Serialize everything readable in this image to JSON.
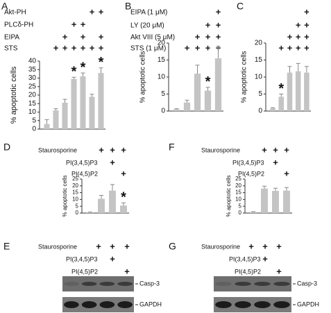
{
  "chart_data": [
    {
      "type": "bar",
      "label": "A",
      "y_label": "% apoptotic cells",
      "conditions": [
        {
          "name": "Akt-PH",
          "marks": [
            null,
            null,
            null,
            null,
            null,
            "+",
            "+"
          ]
        },
        {
          "name": "PLCδ-PH",
          "marks": [
            null,
            null,
            null,
            "+",
            "+",
            null,
            null
          ]
        },
        {
          "name": "EIPA",
          "marks": [
            null,
            null,
            "+",
            null,
            "+",
            null,
            "+"
          ]
        },
        {
          "name": "STS",
          "marks": [
            null,
            "+",
            "+",
            "+",
            "+",
            "+",
            "+"
          ]
        }
      ],
      "values": [
        3,
        11,
        15.5,
        29.5,
        31,
        19,
        33
      ],
      "errors": [
        2.5,
        1,
        2,
        1,
        2,
        1.5,
        3
      ],
      "stars": [
        null,
        null,
        null,
        "*",
        "*",
        null,
        "*"
      ],
      "color": "#c4c4c4",
      "ylim": [
        0,
        40
      ],
      "yticks": [
        0,
        5,
        10,
        15,
        20,
        25,
        30,
        35,
        40
      ]
    },
    {
      "type": "bar",
      "label": "B",
      "y_label": "% apoptotic cells",
      "conditions": [
        {
          "name": "EIPA (1 μM)",
          "marks": [
            null,
            null,
            null,
            null,
            "+"
          ]
        },
        {
          "name": "LY (20 μM)",
          "marks": [
            null,
            null,
            null,
            "+",
            "+"
          ]
        },
        {
          "name": "Akt VIII (5 μM)",
          "marks": [
            null,
            null,
            "+",
            "+",
            "+"
          ]
        },
        {
          "name": "STS (1 μM)",
          "marks": [
            null,
            "+",
            "+",
            "+",
            "+"
          ]
        }
      ],
      "values": [
        0.5,
        2.5,
        11,
        6,
        15.5
      ],
      "errors": [
        0.2,
        0.7,
        2.5,
        1,
        3.5
      ],
      "stars": [
        null,
        null,
        null,
        "*",
        null
      ],
      "color": "#c4c4c4",
      "ylim": [
        0,
        20
      ],
      "yticks": [
        0,
        5,
        10,
        15,
        20
      ]
    },
    {
      "type": "bar",
      "label": "C",
      "y_label": "% apoptotic cells",
      "conditions": [
        {
          "marks": [
            null,
            null,
            null,
            null,
            "+"
          ]
        },
        {
          "marks": [
            null,
            null,
            null,
            "+",
            "+"
          ]
        },
        {
          "marks": [
            null,
            null,
            "+",
            "+",
            "+"
          ]
        },
        {
          "marks": [
            null,
            "+",
            "+",
            "+",
            "+"
          ]
        }
      ],
      "values": [
        0.8,
        4.2,
        11.3,
        11.7,
        11.3
      ],
      "errors": [
        0.2,
        0.8,
        1.8,
        2.3,
        1.8
      ],
      "stars": [
        null,
        "*",
        null,
        null,
        null
      ],
      "color": "#c4c4c4",
      "ylim": [
        0,
        20
      ],
      "yticks": [
        0,
        5,
        10,
        15,
        20
      ]
    },
    {
      "type": "bar",
      "label": "D",
      "y_label": "% apoptotic cells",
      "conditions": [
        {
          "name": "Staurosporine",
          "marks": [
            null,
            "+",
            "+",
            "+"
          ]
        },
        {
          "name": "PI(3,4,5)P3",
          "marks": [
            null,
            null,
            "+",
            null
          ]
        },
        {
          "name": "PI(4,5)P2",
          "marks": [
            null,
            null,
            null,
            "+"
          ]
        }
      ],
      "values": [
        0.5,
        10.5,
        16.5,
        5.5
      ],
      "errors": [
        0.2,
        2.5,
        4.5,
        2
      ],
      "stars": [
        null,
        null,
        null,
        "*"
      ],
      "color": "#c4c4c4",
      "ylim": [
        0,
        25
      ],
      "yticks": [
        0,
        5,
        10,
        15,
        20,
        25
      ]
    },
    {
      "type": "bar",
      "label": "F",
      "y_label": "% apoptotic cells",
      "conditions": [
        {
          "name": "Staurosporine",
          "marks": [
            null,
            "+",
            "+",
            "+"
          ]
        },
        {
          "name": "PI(3,4,5)P3",
          "marks": [
            null,
            null,
            "+",
            null
          ]
        },
        {
          "name": "PI(4,5)P2",
          "marks": [
            null,
            null,
            null,
            "+"
          ]
        }
      ],
      "values": [
        0.8,
        18,
        16.3,
        16.5
      ],
      "errors": [
        0.2,
        1.8,
        2,
        2.3
      ],
      "stars": [
        null,
        null,
        null,
        null
      ],
      "color": "#c4c4c4",
      "ylim": [
        0,
        25
      ],
      "yticks": [
        0,
        5,
        10,
        15,
        20,
        25
      ]
    }
  ],
  "blots": [
    {
      "label": "E",
      "conditions": [
        {
          "name": "Staurosporine",
          "marks": [
            null,
            "+",
            "+",
            "+"
          ]
        },
        {
          "name": "PI(3,4,5)P3",
          "marks": [
            null,
            null,
            "+",
            null
          ]
        },
        {
          "name": "PI(4,5)P2",
          "marks": [
            null,
            null,
            null,
            "+"
          ]
        }
      ],
      "bands": [
        {
          "name": "Casp-3"
        },
        {
          "name": "GAPDH"
        }
      ]
    },
    {
      "label": "G",
      "conditions": [
        {
          "name": "Staurosporine",
          "marks": [
            null,
            "+",
            "+",
            "+"
          ]
        },
        {
          "name": "PI(3,4,5)P3",
          "marks": [
            null,
            null,
            "+",
            null
          ]
        },
        {
          "name": "PI(4,5)P2",
          "marks": [
            null,
            null,
            null,
            "+"
          ]
        }
      ],
      "bands": [
        {
          "name": "Casp-3"
        },
        {
          "name": "GAPDH"
        }
      ]
    }
  ]
}
